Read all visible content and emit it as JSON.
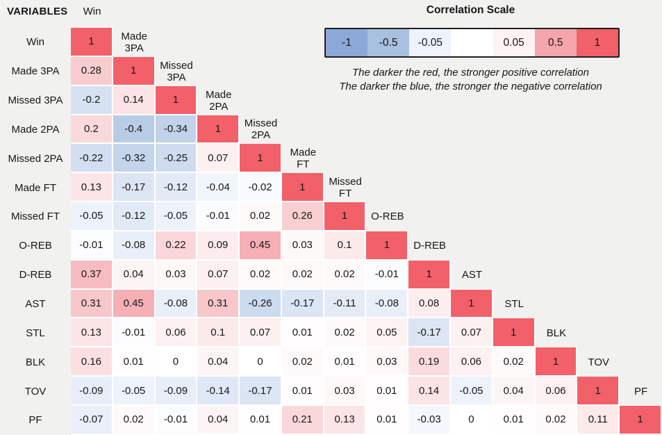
{
  "header": {
    "variables_label": "VARIABLES"
  },
  "legend": {
    "title": "Correlation Scale",
    "stops": [
      {
        "value": -1,
        "label": "-1",
        "color": "#8ca8d8"
      },
      {
        "value": -0.5,
        "label": "-0.5",
        "color": "#a9c1e0"
      },
      {
        "value": -0.05,
        "label": "-0.05",
        "color": "#edf2fb"
      },
      {
        "value": 0,
        "label": "",
        "color": "#ffffff"
      },
      {
        "value": 0.05,
        "label": "0.05",
        "color": "#fdf3f3"
      },
      {
        "value": 0.5,
        "label": "0.5",
        "color": "#f5a6ac"
      },
      {
        "value": 1,
        "label": "1",
        "color": "#f2606a"
      }
    ],
    "notes": [
      "The darker the red, the stronger positive correlation",
      "The darker the blue, the stronger the negative correlation"
    ]
  },
  "chart_data": {
    "type": "heatmap",
    "subtype": "lower-triangular-correlation-matrix",
    "variables": [
      "Win",
      "Made 3PA",
      "Missed 3PA",
      "Made 2PA",
      "Missed 2PA",
      "Made FT",
      "Missed FT",
      "O-REB",
      "D-REB",
      "AST",
      "STL",
      "BLK",
      "TOV",
      "PF"
    ],
    "diagonal_header_lines": [
      [
        "Win"
      ],
      [
        "Made",
        "3PA"
      ],
      [
        "Missed",
        "3PA"
      ],
      [
        "Made",
        "2PA"
      ],
      [
        "Missed",
        "2PA"
      ],
      [
        "Made",
        "FT"
      ],
      [
        "Missed",
        "FT"
      ],
      [
        "O-REB"
      ],
      [
        "D-REB"
      ],
      [
        "AST"
      ],
      [
        "STL"
      ],
      [
        "BLK"
      ],
      [
        "TOV"
      ],
      [
        "PF"
      ]
    ],
    "matrix_lower_triangle": [
      [
        1
      ],
      [
        0.28,
        1
      ],
      [
        -0.2,
        0.14,
        1
      ],
      [
        0.2,
        -0.4,
        -0.34,
        1
      ],
      [
        -0.22,
        -0.32,
        -0.25,
        0.07,
        1
      ],
      [
        0.13,
        -0.17,
        -0.12,
        -0.04,
        -0.02,
        1
      ],
      [
        -0.05,
        -0.12,
        -0.05,
        -0.01,
        0.02,
        0.26,
        1
      ],
      [
        -0.01,
        -0.08,
        0.22,
        0.09,
        0.45,
        0.03,
        0.1,
        1
      ],
      [
        0.37,
        0.04,
        0.03,
        0.07,
        0.02,
        0.02,
        0.02,
        -0.01,
        1
      ],
      [
        0.31,
        0.45,
        -0.08,
        0.31,
        -0.26,
        -0.17,
        -0.11,
        -0.08,
        0.08,
        1
      ],
      [
        0.13,
        -0.01,
        0.06,
        0.1,
        0.07,
        0.01,
        0.02,
        0.05,
        -0.17,
        0.07,
        1
      ],
      [
        0.16,
        0.01,
        0,
        0.04,
        0,
        0.02,
        0.01,
        0.03,
        0.19,
        0.06,
        0.02,
        1
      ],
      [
        -0.09,
        -0.05,
        -0.09,
        -0.14,
        -0.17,
        0.01,
        0.03,
        0.01,
        0.14,
        -0.05,
        0.04,
        0.06,
        1
      ],
      [
        -0.07,
        0.02,
        -0.01,
        0.04,
        0.01,
        0.21,
        0.13,
        0.01,
        -0.03,
        0,
        0.01,
        0.02,
        0.11,
        1
      ]
    ],
    "colors": {
      "page_background": "#f1f1ef",
      "cell_gap": "#ffffff",
      "text": "#161616",
      "positive_max": "#f2606a",
      "negative_max": "#8ca8d8"
    }
  }
}
